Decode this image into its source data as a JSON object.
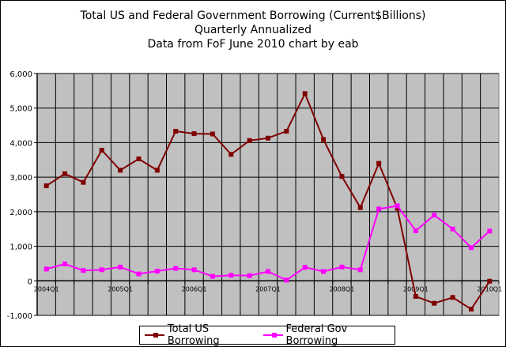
{
  "chart_data": {
    "type": "line",
    "title": "Total US and Federal Government Borrowing (Current$Billions)",
    "subtitle1": "Quarterly Annualized",
    "subtitle2": "Data from FoF June 2010 chart by eab",
    "ylim": [
      -1000,
      6000
    ],
    "y_ticks": [
      "-1,000",
      "0",
      "1,000",
      "2,000",
      "3,000",
      "4,000",
      "5,000",
      "6,000"
    ],
    "y_tick_values": [
      -1000,
      0,
      1000,
      2000,
      3000,
      4000,
      5000,
      6000
    ],
    "x": [
      "2004Q1",
      "2004Q2",
      "2004Q3",
      "2004Q4",
      "2005Q1",
      "2005Q2",
      "2005Q3",
      "2005Q4",
      "2006Q1",
      "2006Q2",
      "2006Q3",
      "2006Q4",
      "2007Q1",
      "2007Q2",
      "2007Q3",
      "2007Q4",
      "2008Q1",
      "2008Q2",
      "2008Q3",
      "2008Q4",
      "2009Q1",
      "2009Q2",
      "2009Q3",
      "2009Q4",
      "2010Q1"
    ],
    "x_tick_labels": [
      {
        "index": 0,
        "label": "2004Q1"
      },
      {
        "index": 4,
        "label": "2005Q1"
      },
      {
        "index": 8,
        "label": "2006Q1"
      },
      {
        "index": 12,
        "label": "2007Q1"
      },
      {
        "index": 16,
        "label": "2008Q1"
      },
      {
        "index": 20,
        "label": "2009Q1"
      },
      {
        "index": 24,
        "label": "2010Q1"
      }
    ],
    "series": [
      {
        "name": "Total US Borrowing",
        "color": "#800000",
        "values": [
          2750,
          3100,
          2850,
          3780,
          3200,
          3530,
          3200,
          4330,
          4260,
          4250,
          3660,
          4060,
          4130,
          4330,
          5420,
          4090,
          3020,
          2120,
          3400,
          2100,
          -450,
          -650,
          -480,
          -820,
          -10
        ]
      },
      {
        "name": "Federal Gov Borrowing",
        "color": "#ff00ff",
        "values": [
          340,
          490,
          300,
          320,
          400,
          200,
          280,
          360,
          320,
          130,
          160,
          150,
          270,
          20,
          390,
          270,
          400,
          320,
          2080,
          2170,
          1450,
          1900,
          1500,
          960,
          1440
        ]
      }
    ],
    "grid": true,
    "legend": "bottom",
    "plot_background": "#c0c0c0"
  }
}
